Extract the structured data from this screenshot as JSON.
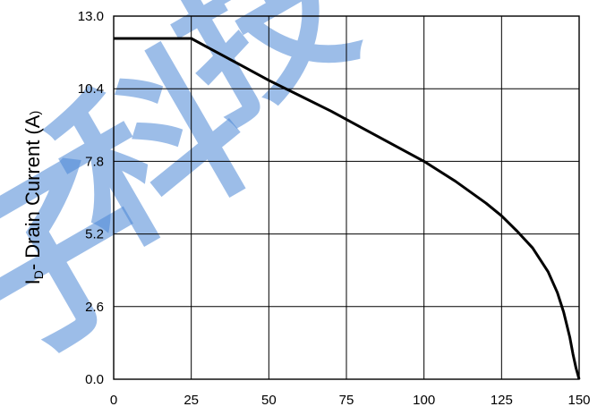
{
  "chart_data": {
    "type": "line",
    "title": "",
    "xlabel": "",
    "ylabel": "ID- Drain Current (A)",
    "ylabel_parts": {
      "main": "I",
      "sub": "D",
      "rest": "- Drain Current (A",
      "close": ")"
    },
    "xlim": [
      0,
      150
    ],
    "ylim": [
      0,
      13
    ],
    "xticks": [
      "0",
      "25",
      "50",
      "75",
      "100",
      "125",
      "150"
    ],
    "yticks": [
      "0.0",
      "2.6",
      "5.2",
      "7.8",
      "10.4",
      "13.0"
    ],
    "grid": true,
    "series": [
      {
        "name": "",
        "x": [
          0,
          25,
          30,
          40,
          50,
          60,
          70,
          80,
          90,
          100,
          110,
          120,
          125,
          130,
          135,
          140,
          143,
          145,
          147,
          148,
          149,
          150
        ],
        "y": [
          12.2,
          12.2,
          11.9,
          11.3,
          10.7,
          10.15,
          9.6,
          9.0,
          8.4,
          7.8,
          7.1,
          6.3,
          5.85,
          5.3,
          4.7,
          3.85,
          3.1,
          2.4,
          1.5,
          0.9,
          0.4,
          0.0
        ]
      }
    ]
  },
  "watermark": {
    "color": "#4a86d6",
    "chars": [
      "子",
      "科",
      "技"
    ]
  }
}
